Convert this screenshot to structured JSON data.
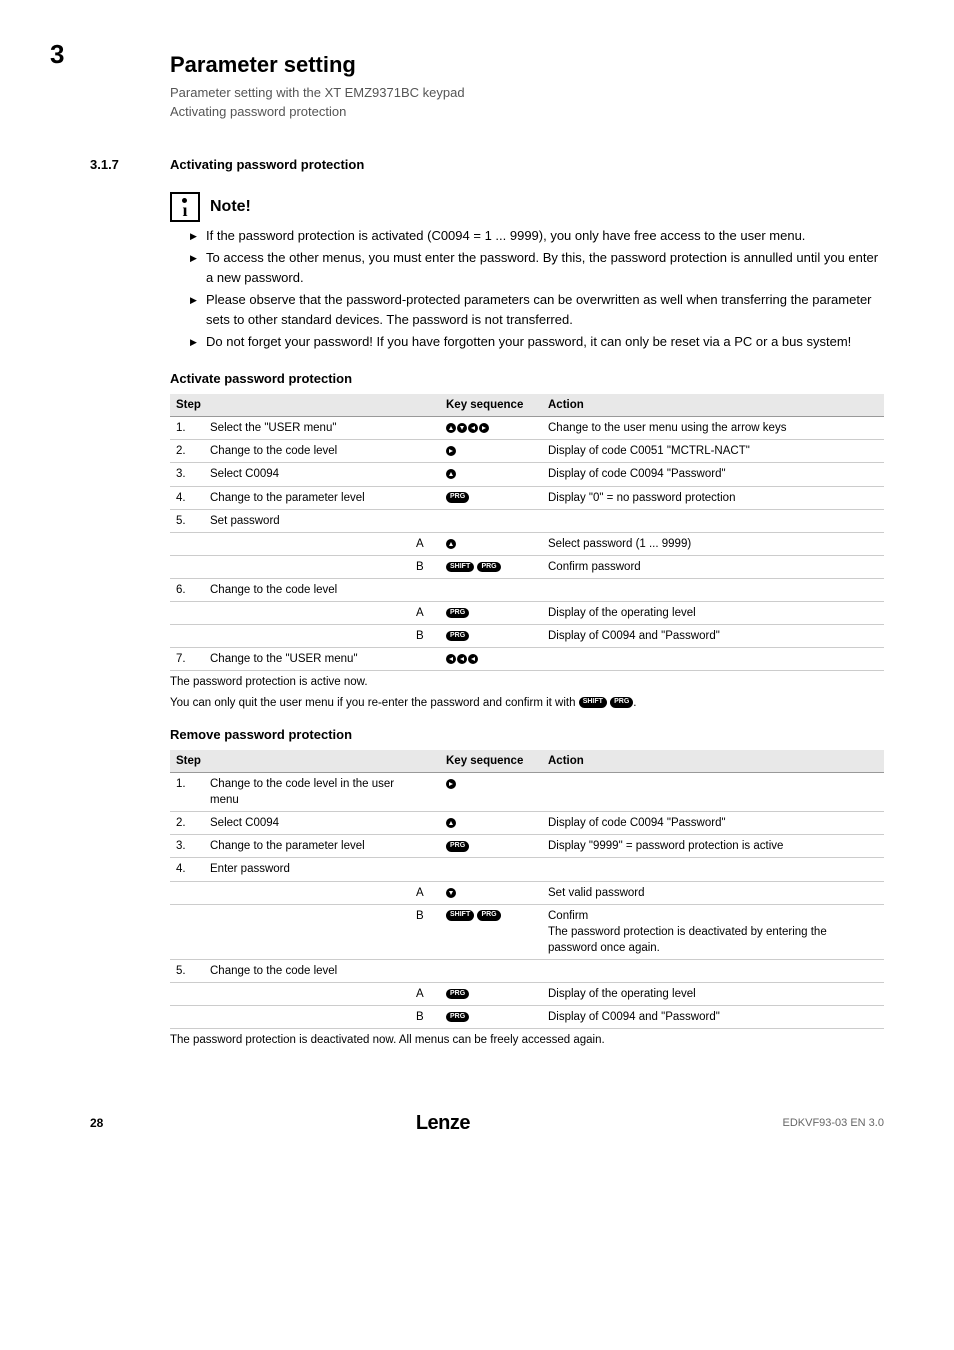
{
  "chapter_num": "3",
  "header": {
    "title": "Parameter setting",
    "line1": "Parameter setting with the XT EMZ9371BC keypad",
    "line2": "Activating password protection"
  },
  "section": {
    "num": "3.1.7",
    "title": "Activating password protection"
  },
  "note": {
    "title": "Note!",
    "bullets": [
      "If the password protection is activated (C0094 = 1 ... 9999), you only have free access to the user menu.",
      "To access the other menus, you must enter the password. By this, the password protection is annulled until you enter a new password.",
      "Please observe that the password-protected parameters can be overwritten as well when transferring the parameter sets to other standard devices. The password is not transferred.",
      "Do not forget your password! If you have forgotten your password, it can only be reset via a PC or a bus system!"
    ]
  },
  "table1": {
    "heading": "Activate password protection",
    "cols": {
      "step": "Step",
      "key": "Key sequence",
      "action": "Action"
    },
    "rows": [
      {
        "n": "1.",
        "step": "Select the \"USER menu\"",
        "sub": "",
        "keytype": "arrows4",
        "action": "Change to the user menu using the arrow keys"
      },
      {
        "n": "2.",
        "step": "Change to the code level",
        "sub": "",
        "keytype": "right",
        "action": "Display of code C0051 \"MCTRL-NACT\""
      },
      {
        "n": "3.",
        "step": "Select C0094",
        "sub": "",
        "keytype": "up",
        "action": "Display of code C0094 \"Password\""
      },
      {
        "n": "4.",
        "step": "Change to the parameter level",
        "sub": "",
        "keytype": "prg",
        "action": "Display \"0\" = no password protection"
      },
      {
        "n": "5.",
        "step": "Set password",
        "sub": "",
        "keytype": "",
        "action": ""
      },
      {
        "n": "",
        "step": "",
        "sub": "A",
        "keytype": "up",
        "action": "Select password (1 ... 9999)"
      },
      {
        "n": "",
        "step": "",
        "sub": "B",
        "keytype": "shiftprg",
        "action": "Confirm password"
      },
      {
        "n": "6.",
        "step": "Change to the code level",
        "sub": "",
        "keytype": "",
        "action": ""
      },
      {
        "n": "",
        "step": "",
        "sub": "A",
        "keytype": "prg",
        "action": "Display of the operating level"
      },
      {
        "n": "",
        "step": "",
        "sub": "B",
        "keytype": "prg",
        "action": "Display of C0094 and \"Password\""
      },
      {
        "n": "7.",
        "step": "Change to the \"USER menu\"",
        "sub": "",
        "keytype": "left3",
        "action": ""
      }
    ],
    "footnote1": "The password protection is active now.",
    "footnote2_pre": "You can only quit the user menu if you re-enter the password and confirm it with ",
    "footnote2_post": "."
  },
  "table2": {
    "heading": "Remove password protection",
    "cols": {
      "step": "Step",
      "key": "Key sequence",
      "action": "Action"
    },
    "rows": [
      {
        "n": "1.",
        "step": "Change to the code level in the user menu",
        "sub": "",
        "keytype": "right",
        "action": ""
      },
      {
        "n": "2.",
        "step": "Select C0094",
        "sub": "",
        "keytype": "up",
        "action": "Display of code C0094 \"Password\""
      },
      {
        "n": "3.",
        "step": "Change to the parameter level",
        "sub": "",
        "keytype": "prg",
        "action": "Display \"9999\" = password protection is active"
      },
      {
        "n": "4.",
        "step": "Enter password",
        "sub": "",
        "keytype": "",
        "action": ""
      },
      {
        "n": "",
        "step": "",
        "sub": "A",
        "keytype": "down",
        "action": "Set valid password"
      },
      {
        "n": "",
        "step": "",
        "sub": "B",
        "keytype": "shiftprg",
        "action": "Confirm\nThe password protection is deactivated by entering the password once again."
      },
      {
        "n": "5.",
        "step": "Change to the code level",
        "sub": "",
        "keytype": "",
        "action": ""
      },
      {
        "n": "",
        "step": "",
        "sub": "A",
        "keytype": "prg",
        "action": "Display of the operating level"
      },
      {
        "n": "",
        "step": "",
        "sub": "B",
        "keytype": "prg",
        "action": "Display of C0094 and \"Password\""
      }
    ],
    "footnote": "The password protection is deactivated now. All menus can be freely accessed again."
  },
  "footer": {
    "page": "28",
    "logo": "Lenze",
    "doc": "EDKVF93-03 EN 3.0"
  }
}
